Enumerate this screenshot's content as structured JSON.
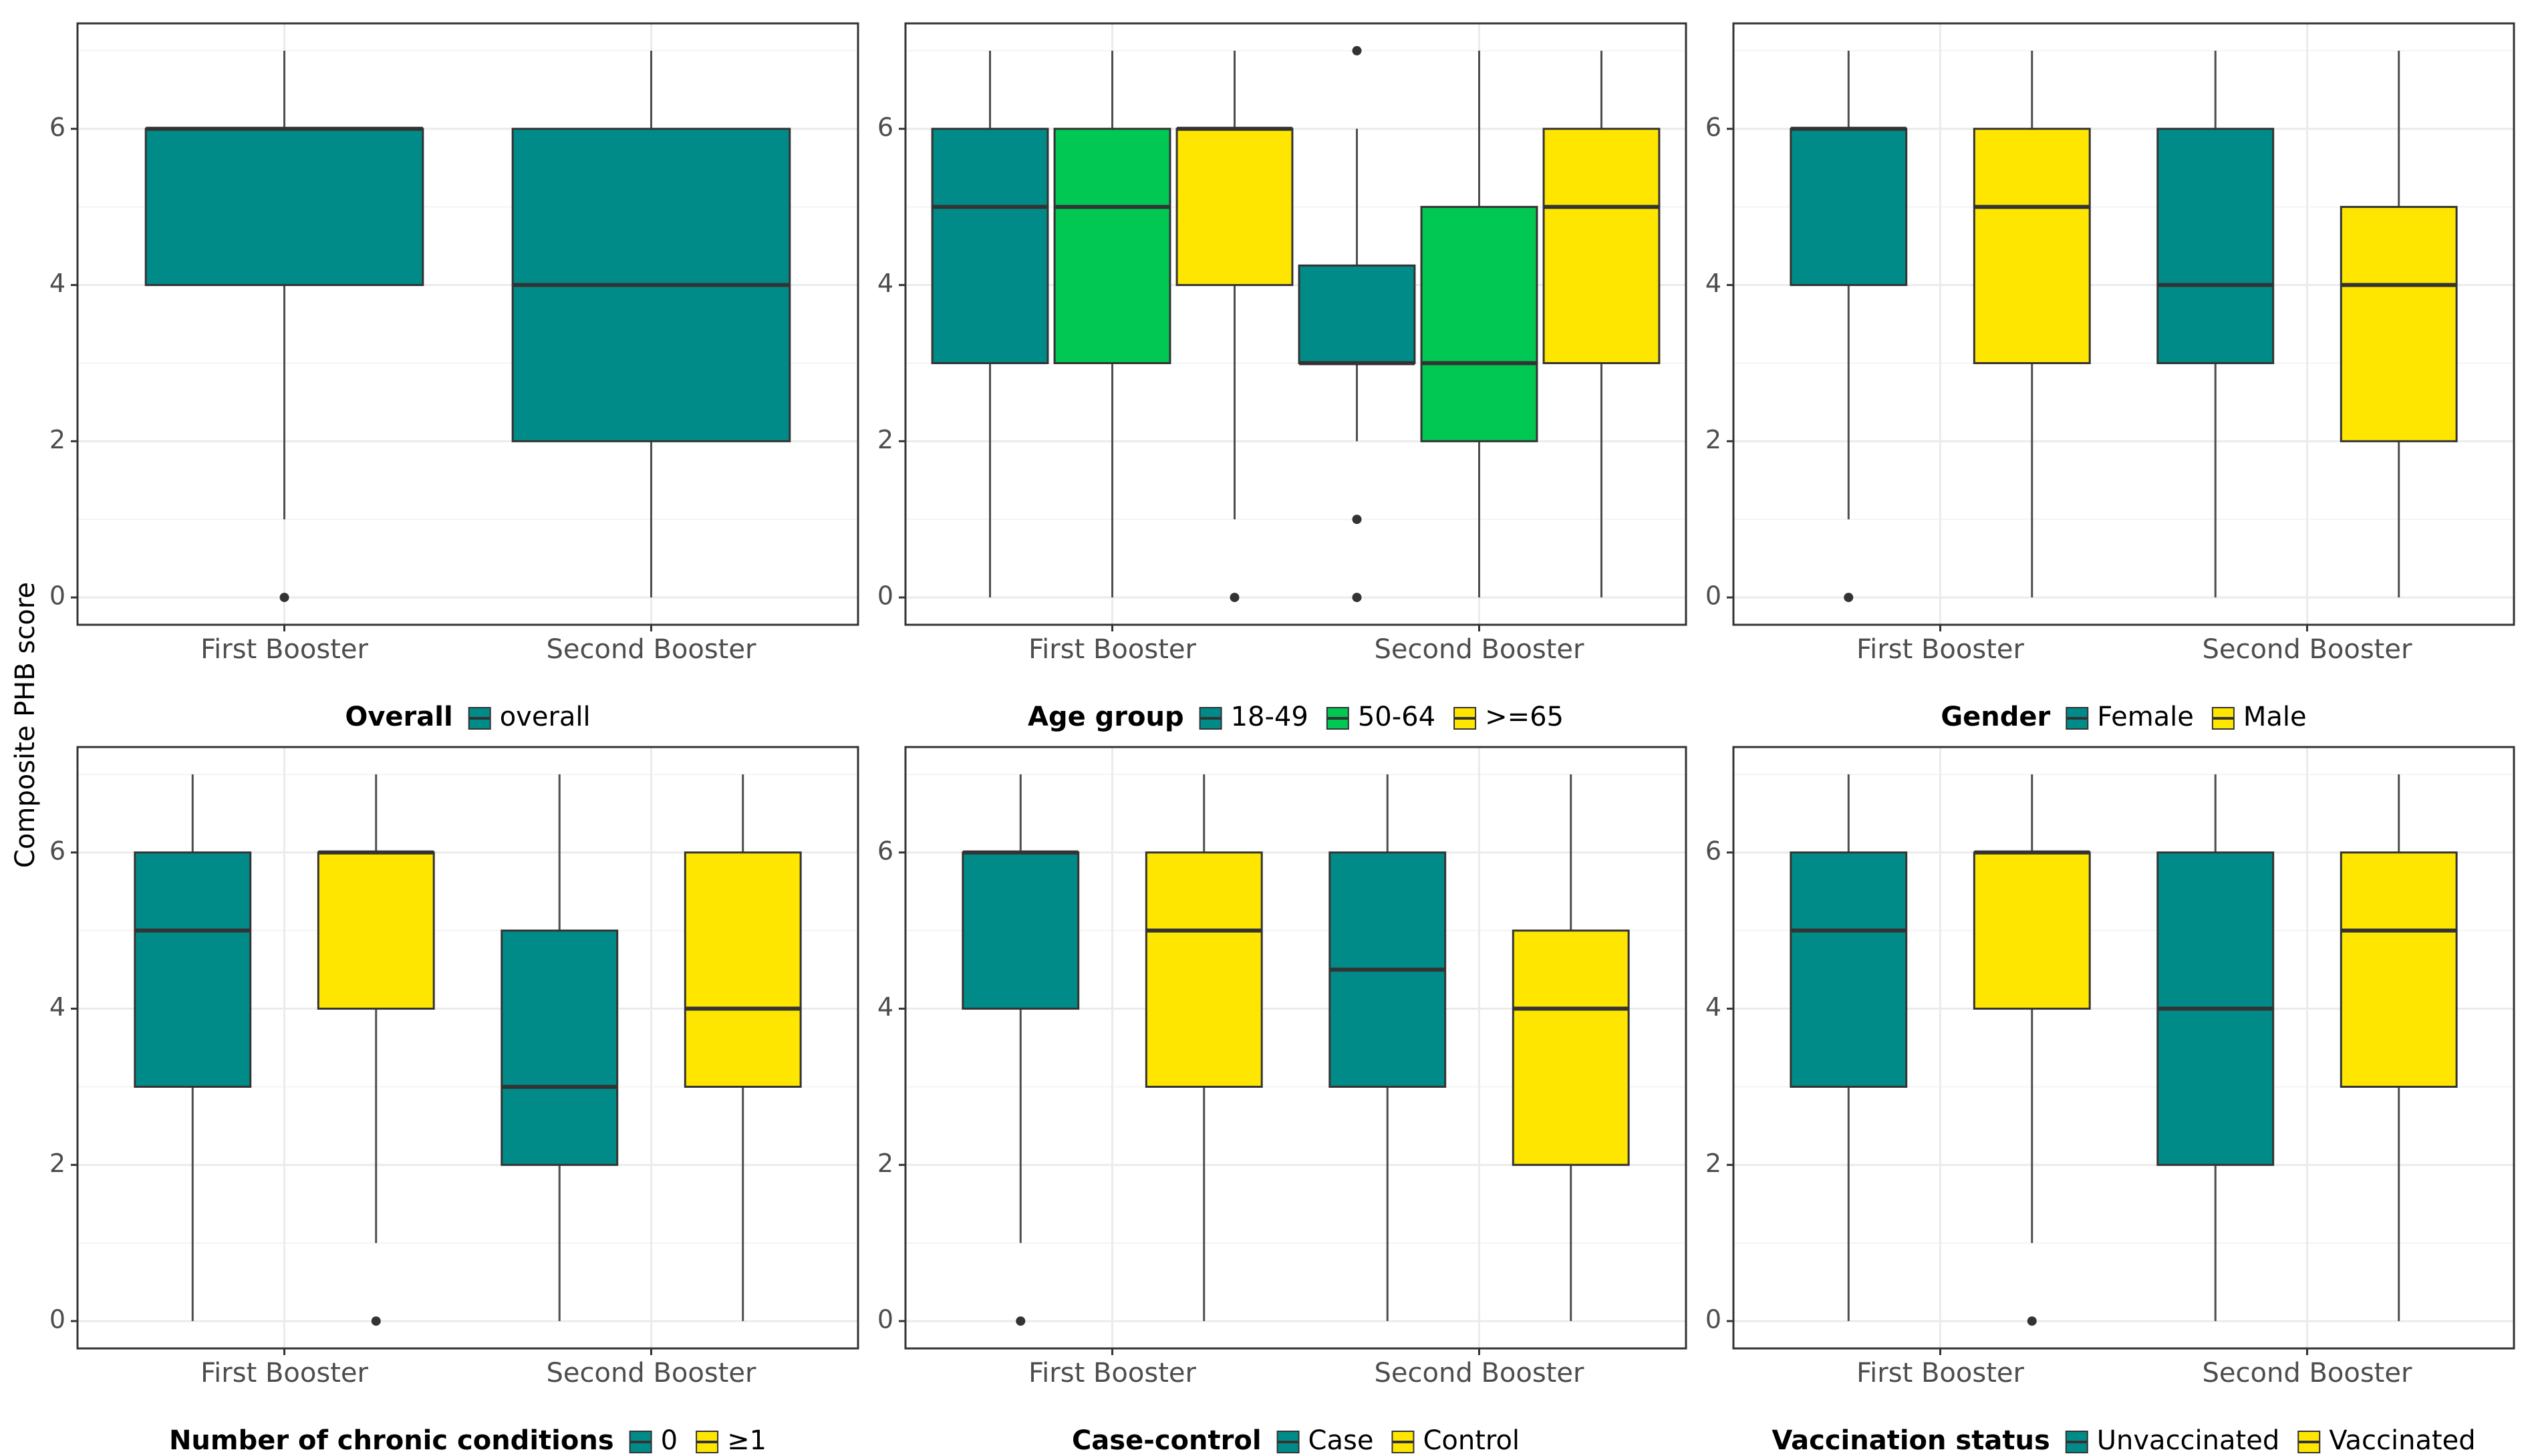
{
  "figure": {
    "ylabel": "Composite PHB score",
    "ylim": [
      -0.35,
      7.35
    ],
    "yticks": [
      0,
      2,
      4,
      6
    ],
    "colors": {
      "teal": "#008b89",
      "green": "#00c853",
      "yellow": "#ffe600",
      "median": "#333333",
      "whisker": "#4d4d4d",
      "grid_major": "#ebebeb",
      "grid_minor": "#f4f4f4",
      "panel_border": "#333333"
    }
  },
  "chart_data": [
    {
      "type": "box",
      "categories": [
        "First Booster",
        "Second Booster"
      ],
      "legend": {
        "title": "Overall",
        "entries": [
          "overall"
        ],
        "colors": [
          "#008b89"
        ]
      },
      "boxes": [
        {
          "category": "First Booster",
          "group": "overall",
          "q1": 4,
          "median": 6,
          "q3": 6,
          "whisker_low": 1,
          "whisker_high": 7,
          "outliers": [
            0
          ]
        },
        {
          "category": "Second Booster",
          "group": "overall",
          "q1": 2,
          "median": 4,
          "q3": 6,
          "whisker_low": 0,
          "whisker_high": 7,
          "outliers": []
        }
      ]
    },
    {
      "type": "box",
      "categories": [
        "First Booster",
        "Second Booster"
      ],
      "legend": {
        "title": "Age group",
        "entries": [
          "18-49",
          "50-64",
          ">=65"
        ],
        "colors": [
          "#008b89",
          "#00c853",
          "#ffe600"
        ]
      },
      "boxes": [
        {
          "category": "First Booster",
          "group": "18-49",
          "q1": 3,
          "median": 5,
          "q3": 6,
          "whisker_low": 0,
          "whisker_high": 7,
          "outliers": []
        },
        {
          "category": "First Booster",
          "group": "50-64",
          "q1": 3,
          "median": 5,
          "q3": 6,
          "whisker_low": 0,
          "whisker_high": 7,
          "outliers": []
        },
        {
          "category": "First Booster",
          "group": ">=65",
          "q1": 4,
          "median": 6,
          "q3": 6,
          "whisker_low": 1,
          "whisker_high": 7,
          "outliers": [
            0
          ]
        },
        {
          "category": "Second Booster",
          "group": "18-49",
          "q1": 3,
          "median": 3,
          "q3": 4.25,
          "whisker_low": 2,
          "whisker_high": 6,
          "outliers": [
            7,
            1,
            0
          ]
        },
        {
          "category": "Second Booster",
          "group": "50-64",
          "q1": 2,
          "median": 3,
          "q3": 5,
          "whisker_low": 0,
          "whisker_high": 7,
          "outliers": []
        },
        {
          "category": "Second Booster",
          "group": ">=65",
          "q1": 3,
          "median": 5,
          "q3": 6,
          "whisker_low": 0,
          "whisker_high": 7,
          "outliers": []
        }
      ]
    },
    {
      "type": "box",
      "categories": [
        "First Booster",
        "Second Booster"
      ],
      "legend": {
        "title": "Gender",
        "entries": [
          "Female",
          "Male"
        ],
        "colors": [
          "#008b89",
          "#ffe600"
        ]
      },
      "boxes": [
        {
          "category": "First Booster",
          "group": "Female",
          "q1": 4,
          "median": 6,
          "q3": 6,
          "whisker_low": 1,
          "whisker_high": 7,
          "outliers": [
            0
          ]
        },
        {
          "category": "First Booster",
          "group": "Male",
          "q1": 3,
          "median": 5,
          "q3": 6,
          "whisker_low": 0,
          "whisker_high": 7,
          "outliers": []
        },
        {
          "category": "Second Booster",
          "group": "Female",
          "q1": 3,
          "median": 4,
          "q3": 6,
          "whisker_low": 0,
          "whisker_high": 7,
          "outliers": []
        },
        {
          "category": "Second Booster",
          "group": "Male",
          "q1": 2,
          "median": 4,
          "q3": 5,
          "whisker_low": 0,
          "whisker_high": 7,
          "outliers": []
        }
      ]
    },
    {
      "type": "box",
      "categories": [
        "First Booster",
        "Second Booster"
      ],
      "legend": {
        "title": "Number of chronic conditions",
        "entries": [
          "0",
          "≥1"
        ],
        "colors": [
          "#008b89",
          "#ffe600"
        ]
      },
      "boxes": [
        {
          "category": "First Booster",
          "group": "0",
          "q1": 3,
          "median": 5,
          "q3": 6,
          "whisker_low": 0,
          "whisker_high": 7,
          "outliers": []
        },
        {
          "category": "First Booster",
          "group": "≥1",
          "q1": 4,
          "median": 6,
          "q3": 6,
          "whisker_low": 1,
          "whisker_high": 7,
          "outliers": [
            0
          ]
        },
        {
          "category": "Second Booster",
          "group": "0",
          "q1": 2,
          "median": 3,
          "q3": 5,
          "whisker_low": 0,
          "whisker_high": 7,
          "outliers": []
        },
        {
          "category": "Second Booster",
          "group": "≥1",
          "q1": 3,
          "median": 4,
          "q3": 6,
          "whisker_low": 0,
          "whisker_high": 7,
          "outliers": []
        }
      ]
    },
    {
      "type": "box",
      "categories": [
        "First Booster",
        "Second Booster"
      ],
      "legend": {
        "title": "Case-control",
        "entries": [
          "Case",
          "Control"
        ],
        "colors": [
          "#008b89",
          "#ffe600"
        ]
      },
      "boxes": [
        {
          "category": "First Booster",
          "group": "Case",
          "q1": 4,
          "median": 6,
          "q3": 6,
          "whisker_low": 1,
          "whisker_high": 7,
          "outliers": [
            0
          ]
        },
        {
          "category": "First Booster",
          "group": "Control",
          "q1": 3,
          "median": 5,
          "q3": 6,
          "whisker_low": 0,
          "whisker_high": 7,
          "outliers": []
        },
        {
          "category": "Second Booster",
          "group": "Case",
          "q1": 3,
          "median": 4.5,
          "q3": 6,
          "whisker_low": 0,
          "whisker_high": 7,
          "outliers": []
        },
        {
          "category": "Second Booster",
          "group": "Control",
          "q1": 2,
          "median": 4,
          "q3": 5,
          "whisker_low": 0,
          "whisker_high": 7,
          "outliers": []
        }
      ]
    },
    {
      "type": "box",
      "categories": [
        "First Booster",
        "Second Booster"
      ],
      "legend": {
        "title": "Vaccination status",
        "entries": [
          "Unvaccinated",
          "Vaccinated"
        ],
        "colors": [
          "#008b89",
          "#ffe600"
        ]
      },
      "boxes": [
        {
          "category": "First Booster",
          "group": "Unvaccinated",
          "q1": 3,
          "median": 5,
          "q3": 6,
          "whisker_low": 0,
          "whisker_high": 7,
          "outliers": []
        },
        {
          "category": "First Booster",
          "group": "Vaccinated",
          "q1": 4,
          "median": 6,
          "q3": 6,
          "whisker_low": 1,
          "whisker_high": 7,
          "outliers": [
            0
          ]
        },
        {
          "category": "Second Booster",
          "group": "Unvaccinated",
          "q1": 2,
          "median": 4,
          "q3": 6,
          "whisker_low": 0,
          "whisker_high": 7,
          "outliers": []
        },
        {
          "category": "Second Booster",
          "group": "Vaccinated",
          "q1": 3,
          "median": 5,
          "q3": 6,
          "whisker_low": 0,
          "whisker_high": 7,
          "outliers": []
        }
      ]
    }
  ]
}
